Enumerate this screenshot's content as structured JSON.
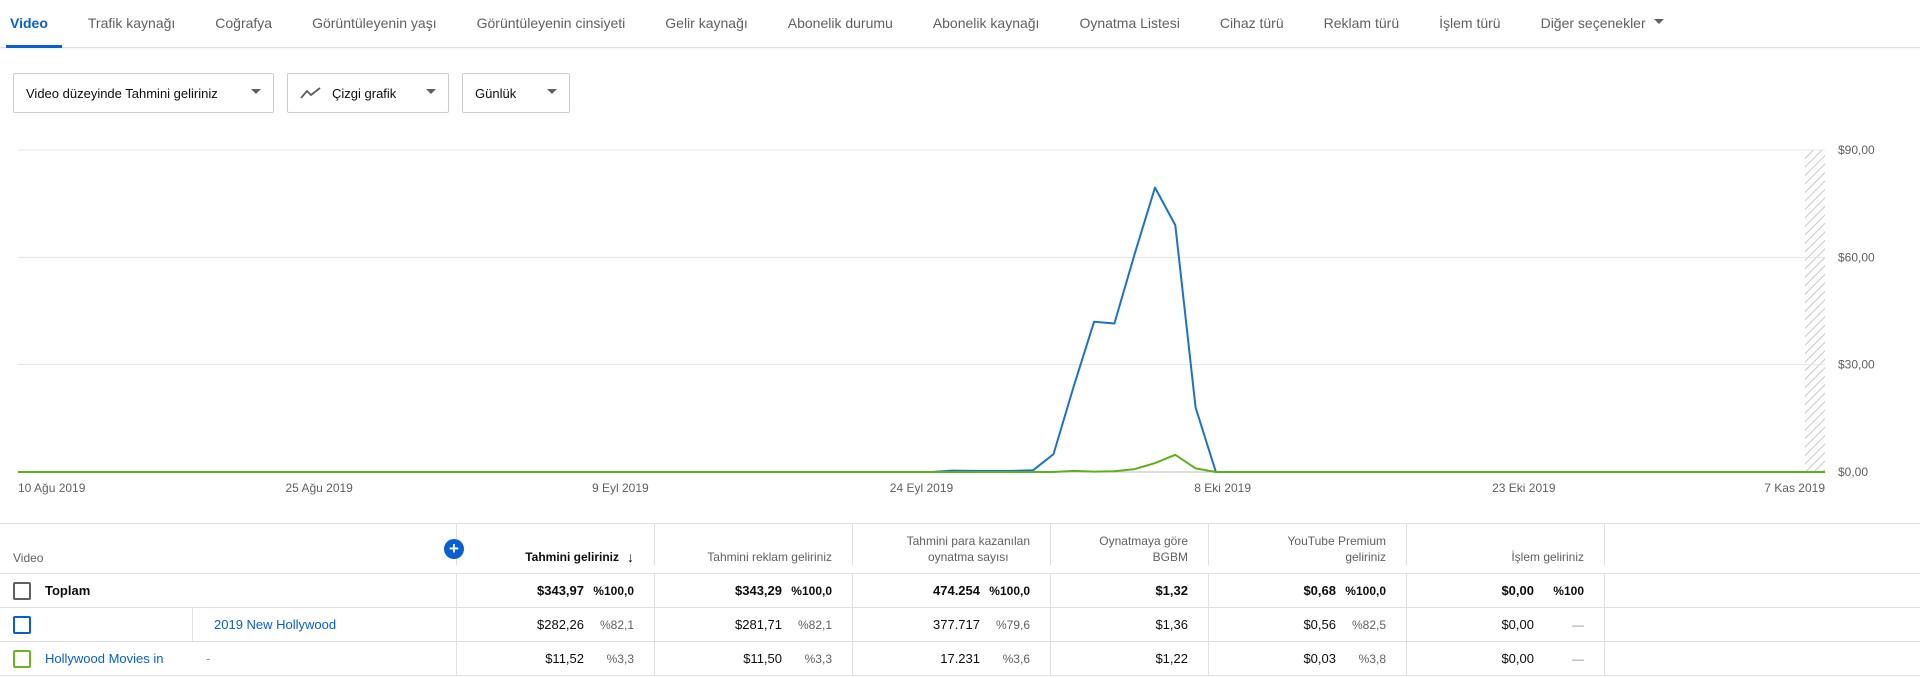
{
  "tabs": [
    {
      "label": "Video",
      "active": true
    },
    {
      "label": "Trafik kaynağı"
    },
    {
      "label": "Coğrafya"
    },
    {
      "label": "Görüntüleyenin yaşı"
    },
    {
      "label": "Görüntüleyenin cinsiyeti"
    },
    {
      "label": "Gelir kaynağı"
    },
    {
      "label": "Abonelik durumu"
    },
    {
      "label": "Abonelik kaynağı"
    },
    {
      "label": "Oynatma Listesi"
    },
    {
      "label": "Cihaz türü"
    },
    {
      "label": "Reklam türü"
    },
    {
      "label": "İşlem türü"
    },
    {
      "label": "Diğer seçenekler"
    }
  ],
  "controls": {
    "metric": "Video düzeyinde Tahmini geliriniz",
    "chart_type": "Çizgi grafik",
    "interval": "Günlük"
  },
  "colors": {
    "accent": "#065fd4",
    "series_blue": "#1a73c8",
    "series_green": "#5fb01f",
    "grid": "#e5e5e5"
  },
  "chart_data": {
    "type": "line",
    "x_ticks": [
      "10 Ağu 2019",
      "25 Ağu 2019",
      "9 Eyl 2019",
      "24 Eyl 2019",
      "8 Eki 2019",
      "23 Eki 2019",
      "7 Kas 2019"
    ],
    "y_ticks": [
      "$0,00",
      "$30,00",
      "$60,00",
      "$90,00"
    ],
    "ylim": [
      0,
      90
    ],
    "x_start": "2019-08-10",
    "x_end": "2019-11-07",
    "grid": true,
    "series": [
      {
        "color": "#1a73c8",
        "points": [
          [
            "2019-08-10",
            0
          ],
          [
            "2019-09-24",
            0
          ],
          [
            "2019-09-25",
            0.4
          ],
          [
            "2019-09-26",
            0.3
          ],
          [
            "2019-09-27",
            0.3
          ],
          [
            "2019-09-28",
            0.3
          ],
          [
            "2019-09-29",
            0.5
          ],
          [
            "2019-09-30",
            5
          ],
          [
            "2019-10-01",
            24
          ],
          [
            "2019-10-02",
            42
          ],
          [
            "2019-10-03",
            41.5
          ],
          [
            "2019-10-04",
            61
          ],
          [
            "2019-10-05",
            79.5
          ],
          [
            "2019-10-06",
            69
          ],
          [
            "2019-10-07",
            18
          ],
          [
            "2019-10-08",
            0
          ],
          [
            "2019-11-07",
            0
          ]
        ]
      },
      {
        "color": "#5fb01f",
        "points": [
          [
            "2019-08-10",
            0
          ],
          [
            "2019-09-30",
            0
          ],
          [
            "2019-10-01",
            0.3
          ],
          [
            "2019-10-02",
            0.1
          ],
          [
            "2019-10-03",
            0.2
          ],
          [
            "2019-10-04",
            0.8
          ],
          [
            "2019-10-05",
            2.5
          ],
          [
            "2019-10-06",
            4.8
          ],
          [
            "2019-10-07",
            1
          ],
          [
            "2019-10-08",
            0
          ],
          [
            "2019-11-07",
            0
          ]
        ]
      }
    ]
  },
  "table": {
    "headers": {
      "video": "Video",
      "revenue": "Tahmini geliriniz",
      "ad_revenue": "Tahmini reklam geliriniz",
      "monetized_line1": "Tahmini para kazanılan",
      "monetized_line2": "oynatma sayısı",
      "cpm_line1": "Oynatmaya göre",
      "cpm_line2": "BGBM",
      "premium_line1": "YouTube Premium",
      "premium_line2": "geliriniz",
      "transaction": "İşlem geliriniz"
    },
    "total": {
      "label": "Toplam",
      "revenue": "$343,97",
      "revenue_pct": "%100,0",
      "ad_revenue": "$343,29",
      "ad_revenue_pct": "%100,0",
      "monetized": "474.254",
      "monetized_pct": "%100,0",
      "cpm": "$1,32",
      "premium": "$0,68",
      "premium_pct": "%100,0",
      "transaction": "$0,00",
      "transaction_pct": "%100"
    },
    "rows": [
      {
        "title": "",
        "title_right": "2019 New Hollywood",
        "revenue": "$282,26",
        "revenue_pct": "%82,1",
        "ad_revenue": "$281,71",
        "ad_revenue_pct": "%82,1",
        "monetized": "377.717",
        "monetized_pct": "%79,6",
        "cpm": "$1,36",
        "premium": "$0,56",
        "premium_pct": "%82,5",
        "transaction": "$0,00",
        "transaction_pct": "—"
      },
      {
        "title": "Hollywood Movies in",
        "title_right": "-",
        "revenue": "$11,52",
        "revenue_pct": "%3,3",
        "ad_revenue": "$11,50",
        "ad_revenue_pct": "%3,3",
        "monetized": "17.231",
        "monetized_pct": "%3,6",
        "cpm": "$1,22",
        "premium": "$0,03",
        "premium_pct": "%3,8",
        "transaction": "$0,00",
        "transaction_pct": "—"
      }
    ]
  }
}
